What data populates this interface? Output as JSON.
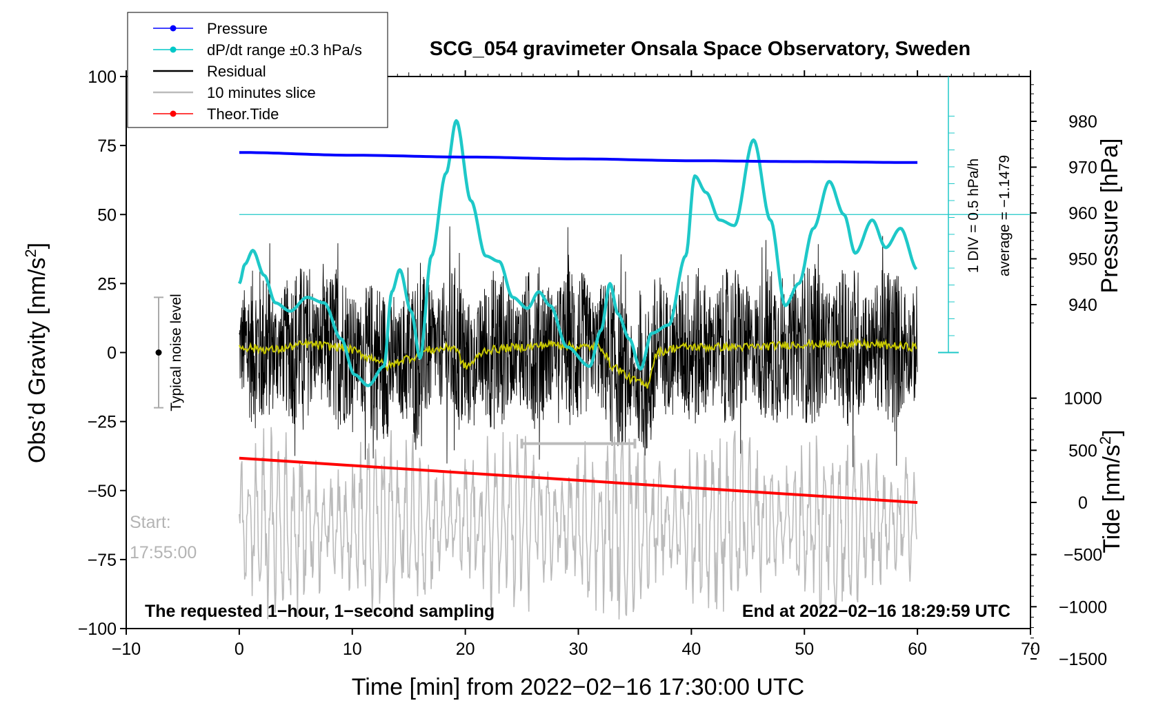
{
  "chart_data": {
    "type": "line",
    "title": "SCG_054 gravimeter Onsala Space Observatory, Sweden",
    "xlabel": "Time [min] from 2022−02−16 17:30:00 UTC",
    "ylabel_left": "Obs’d Gravity [nm/s",
    "ylabel_left_sup": "2",
    "ylabel_left_tail": "]",
    "ylabel_right_pressure": "Pressure [hPa]",
    "ylabel_right_tide": "Tide [nm/s",
    "ylabel_right_tide_sup": "2",
    "ylabel_right_tide_tail": "]",
    "xlim": [
      -10,
      70
    ],
    "ylim": [
      -100,
      100
    ],
    "pressure_lim": [
      930,
      990
    ],
    "tide_lim": [
      -1500,
      1500
    ],
    "x_ticks": [
      "−10",
      "0",
      "10",
      "20",
      "30",
      "40",
      "50",
      "60",
      "70"
    ],
    "x_tick_values": [
      -10,
      0,
      10,
      20,
      30,
      40,
      50,
      60,
      70
    ],
    "y_ticks": [
      "100",
      "75",
      "50",
      "25",
      "0",
      "−25",
      "−50",
      "−75",
      "−100"
    ],
    "y_tick_values": [
      100,
      75,
      50,
      25,
      0,
      -25,
      -50,
      -75,
      -100
    ],
    "pressure_ticks": [
      "980",
      "970",
      "960",
      "950",
      "940"
    ],
    "pressure_tick_values": [
      980,
      970,
      960,
      950,
      940
    ],
    "tide_ticks": [
      "1000",
      "500",
      "0",
      "−500",
      "−1000",
      "−1500"
    ],
    "tide_tick_values": [
      1000,
      500,
      0,
      -500,
      -1000,
      -1500
    ],
    "legend": [
      {
        "label": "Pressure",
        "color": "#0000ff",
        "marker": true
      },
      {
        "label": "dP/dt range ±0.3 hPa/s",
        "color": "#00c8c8",
        "marker": true
      },
      {
        "label": "Residual",
        "color": "#000000",
        "marker": false
      },
      {
        "label": "10 minutes slice",
        "color": "#bbbbbb",
        "marker": false
      },
      {
        "label": "Theor.Tide",
        "color": "#ff0000",
        "marker": true
      }
    ],
    "series": [
      {
        "name": "Pressure",
        "axis": "pressure",
        "color": "#0000ff",
        "x": [
          0,
          10,
          20,
          30,
          40,
          50,
          60
        ],
        "values": [
          973.2,
          972.6,
          972.2,
          971.8,
          971.4,
          971.2,
          971.0
        ]
      },
      {
        "name": "dP/dt range ±0.3 hPa/s",
        "axis": "gravity",
        "color": "#1ec8c8",
        "x": [
          0,
          0.5,
          1.2,
          2.2,
          3.2,
          4.5,
          6,
          7.5,
          9,
          10.2,
          11.4,
          12.8,
          13.5,
          14.2,
          15.2,
          16,
          17,
          18.3,
          19.2,
          20.5,
          21.8,
          23,
          24.2,
          25.5,
          26.5,
          27.5,
          29,
          31,
          32,
          32.8,
          33.5,
          34.5,
          35.5,
          36.5,
          38,
          39.5,
          40.3,
          41.3,
          42.5,
          43.8,
          45.5,
          47,
          48.3,
          49.5,
          50.8,
          52.2,
          53.5,
          54.5,
          56,
          57.2,
          58.5,
          60
        ],
        "values": [
          25,
          32,
          37,
          28,
          18,
          15,
          20,
          18,
          5,
          -8,
          -12,
          -5,
          22,
          30,
          15,
          -2,
          35,
          65,
          84,
          55,
          35,
          33,
          20,
          16,
          22,
          17,
          2,
          -5,
          8,
          25,
          14,
          5,
          -6,
          7,
          10,
          35,
          64,
          58,
          48,
          46,
          77,
          48,
          17,
          25,
          45,
          62,
          50,
          36,
          48,
          38,
          45,
          30
        ]
      },
      {
        "name": "Theor.Tide",
        "axis": "tide",
        "color": "#ff0000",
        "x": [
          0,
          60
        ],
        "values": [
          425,
          -1
        ]
      },
      {
        "name": "Residual",
        "axis": "gravity",
        "color": "#000000",
        "noise_amplitude": 30
      },
      {
        "name": "10 minutes slice",
        "axis": "gravity",
        "color": "#bbbbbb",
        "center": -62,
        "amplitude": 30
      },
      {
        "name": "Running mean",
        "axis": "gravity",
        "color": "#c8c800",
        "x": [
          0,
          3,
          6,
          9,
          12,
          13,
          15,
          17,
          19,
          20,
          22,
          25,
          28,
          30,
          32,
          33,
          35,
          36,
          37,
          39,
          45,
          50,
          55,
          60
        ],
        "values": [
          2,
          1,
          3,
          2,
          -2,
          -5,
          -2,
          1,
          2,
          -5,
          1,
          2,
          3,
          2,
          2,
          -5,
          -10,
          -12,
          0,
          2,
          2,
          3,
          3,
          2
        ]
      }
    ],
    "annotations": {
      "noise_label": "Typical noise level",
      "noise_range": [
        -20,
        20
      ],
      "dpdt_scale": "1 DIV = 0.5 hPa/h",
      "dpdt_average": "average = −1.1479",
      "dpdt_reference_level": 50,
      "slice_marker_x": [
        25,
        35
      ],
      "slice_marker_y": -33,
      "start_label": "Start:",
      "start_time": "17:55:00",
      "footer_left": "The requested 1−hour, 1−second sampling",
      "footer_right": "End at 2022−02−16 18:29:59 UTC"
    }
  }
}
